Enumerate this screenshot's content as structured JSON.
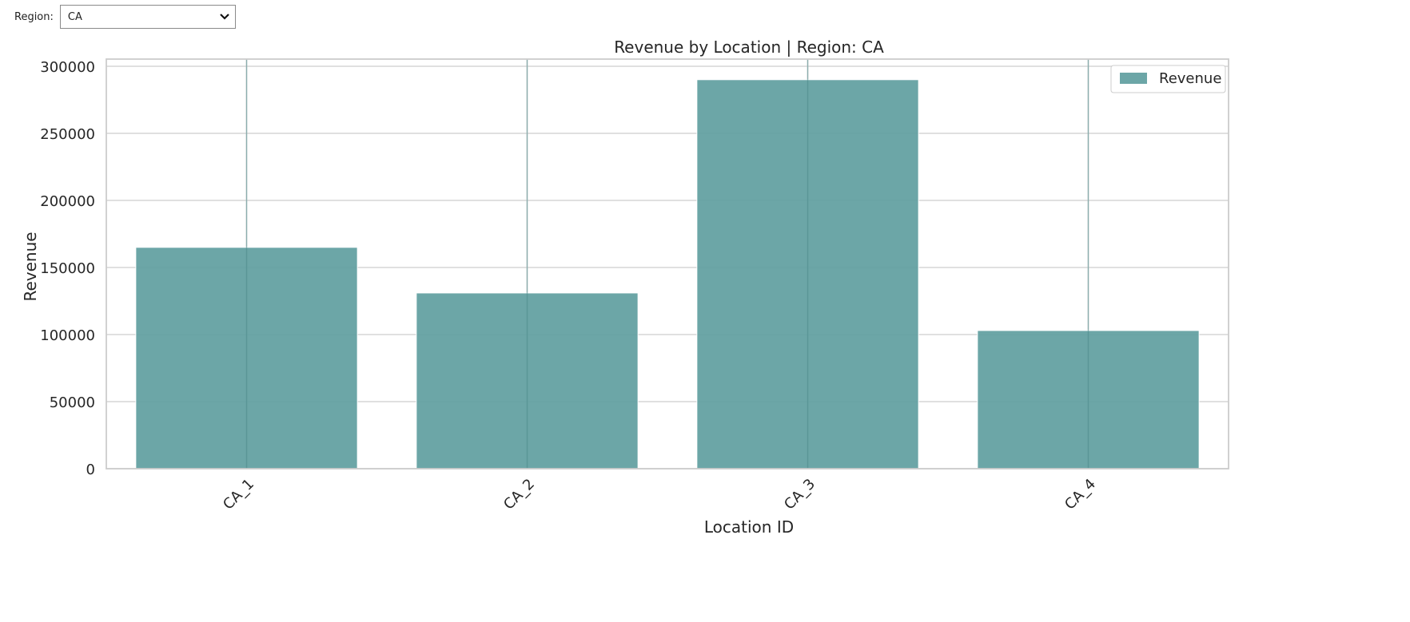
{
  "filter": {
    "label": "Region:",
    "selected": "CA",
    "icon": "chevron-down-icon"
  },
  "chart_data": {
    "type": "bar",
    "title": "Revenue by Location | Region: CA",
    "xlabel": "Location ID",
    "ylabel": "Revenue",
    "categories": [
      "CA_1",
      "CA_2",
      "CA_3",
      "CA_4"
    ],
    "series": [
      {
        "name": "Revenue",
        "values": [
          165000,
          131000,
          290000,
          103000
        ],
        "color": "#5f9ea0"
      }
    ],
    "ylim": [
      0,
      300000
    ],
    "yticks": [
      0,
      50000,
      100000,
      150000,
      200000,
      250000,
      300000
    ],
    "grid": true,
    "legend": "top-right"
  }
}
